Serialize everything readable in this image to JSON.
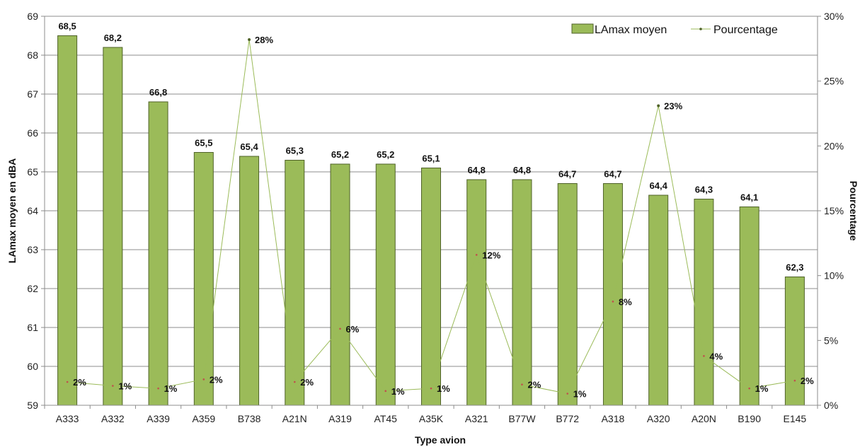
{
  "chart_data": {
    "type": "bar",
    "categories": [
      "A333",
      "A332",
      "A339",
      "A359",
      "B738",
      "A21N",
      "A319",
      "AT45",
      "A35K",
      "A321",
      "B77W",
      "B772",
      "A318",
      "A320",
      "A20N",
      "B190",
      "E145"
    ],
    "series": [
      {
        "name": "LAmax moyen",
        "type": "bar",
        "axis": "left",
        "values": [
          68.5,
          68.2,
          66.8,
          65.5,
          65.4,
          65.3,
          65.2,
          65.2,
          65.1,
          64.8,
          64.8,
          64.7,
          64.7,
          64.4,
          64.3,
          64.1,
          62.3
        ],
        "labels": [
          "68,5",
          "68,2",
          "66,8",
          "65,5",
          "65,4",
          "65,3",
          "65,2",
          "65,2",
          "65,1",
          "64,8",
          "64,8",
          "64,7",
          "64,7",
          "64,4",
          "64,3",
          "64,1",
          "62,3"
        ]
      },
      {
        "name": "Pourcentage",
        "type": "line",
        "axis": "right",
        "values": [
          1.8,
          1.5,
          1.3,
          2.0,
          28.2,
          1.8,
          5.9,
          1.1,
          1.3,
          11.6,
          1.6,
          0.9,
          8.0,
          23.1,
          3.8,
          1.3,
          1.9
        ],
        "labels": [
          "2%",
          "1%",
          "1%",
          "2%",
          "28%",
          "2%",
          "6%",
          "1%",
          "1%",
          "12%",
          "2%",
          "1%",
          "8%",
          "23%",
          "4%",
          "1%",
          "2%"
        ]
      }
    ],
    "xlabel": "Type avion",
    "ylabel": "LAmax moyen en dBA",
    "y2label": "Pourcentage",
    "ylim": [
      59,
      69
    ],
    "y_ticks": [
      "59",
      "60",
      "61",
      "62",
      "63",
      "64",
      "65",
      "66",
      "67",
      "68",
      "69"
    ],
    "y2lim": [
      0,
      30
    ],
    "y2_ticks": [
      "0%",
      "5%",
      "10%",
      "15%",
      "20%",
      "25%",
      "30%"
    ],
    "grid": true,
    "legend": "top-right",
    "colors": {
      "bar_fill": "#9BBB59",
      "bar_stroke": "#4F6228",
      "line": "#9BBB59",
      "marker": "#C0504D",
      "marker_peak": "#4F6228",
      "grid": "#8c8c8c"
    }
  }
}
